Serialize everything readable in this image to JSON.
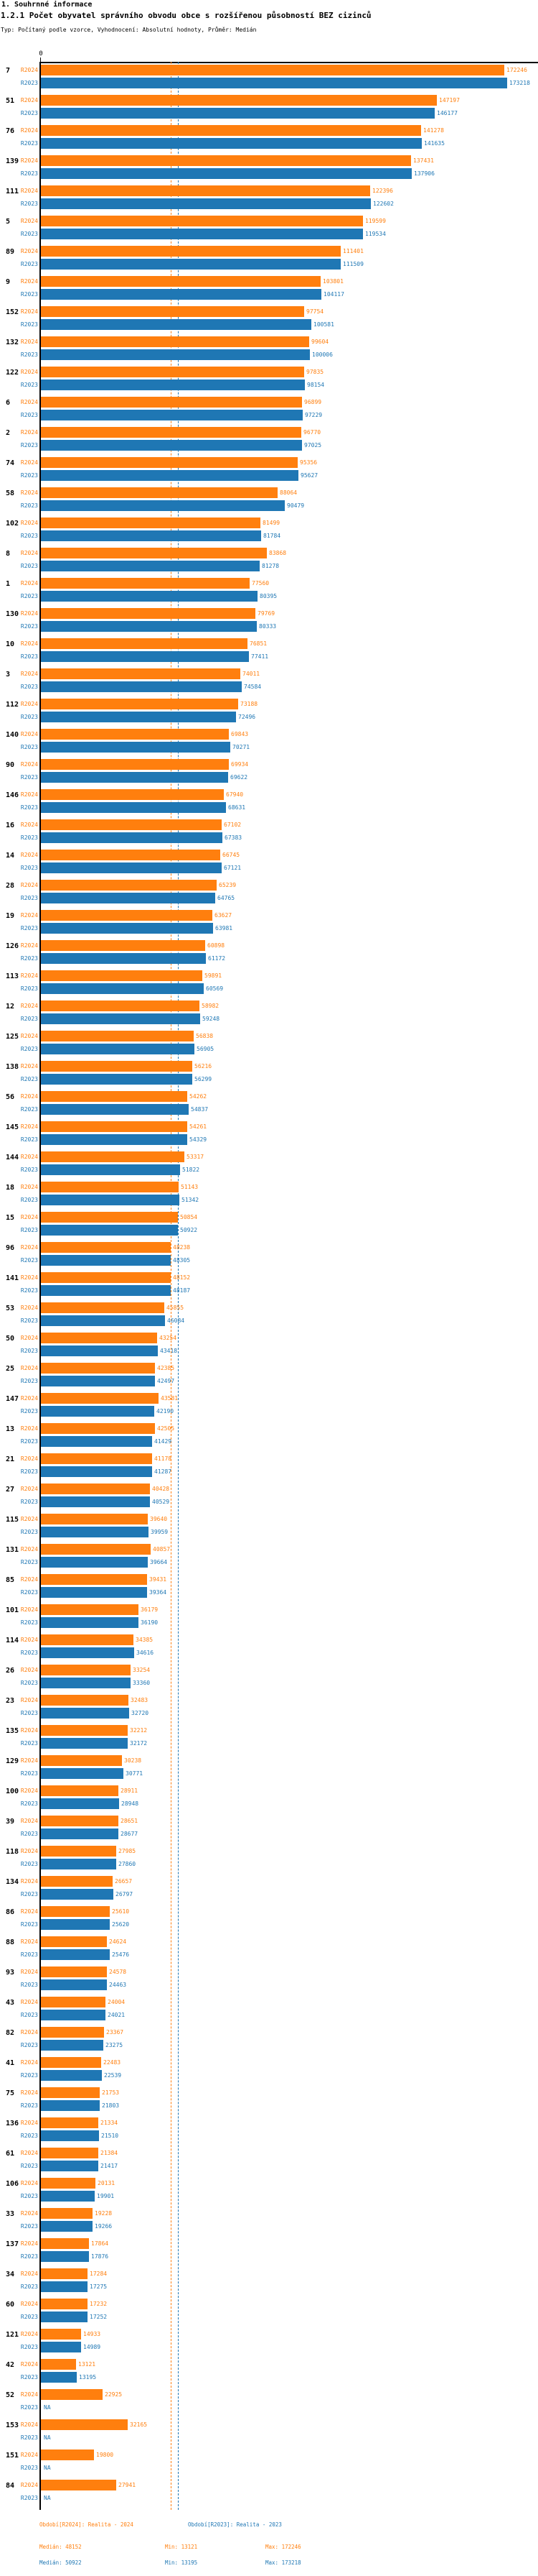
{
  "header": {
    "section_title": "1. Souhrnné informace",
    "chart_title": "1.2.1 Počet obyvatel správního obvodu obce s rozšířenou působností BEZ cizinců",
    "meta": "Typ: Počítaný podle vzorce, Vyhodnocení: Absolutní hodnoty, Průměr: Medián"
  },
  "chart_data": {
    "type": "bar",
    "orientation": "horizontal",
    "title": "1.2.1 Počet obyvatel správního obvodu obce s rozšířenou působností BEZ cizinců",
    "axis": {
      "zero_label": "0",
      "max_value": 173218,
      "na_label": "NA",
      "grid": false
    },
    "legend_position": "bottom",
    "series": [
      {
        "name": "R2024",
        "label": "Období[R2024]: Realita - 2024",
        "color": "#ff7f0e",
        "median": 48152,
        "min": 13121,
        "max": 172246
      },
      {
        "name": "R2023",
        "label": "Období[R2023]: Realita - 2023",
        "color": "#1f77b4",
        "median": 50922,
        "min": 13195,
        "max": 173218
      }
    ],
    "groups": [
      {
        "id": "7",
        "r2024": 172246,
        "r2023": 173218
      },
      {
        "id": "51",
        "r2024": 147197,
        "r2023": 146177
      },
      {
        "id": "76",
        "r2024": 141278,
        "r2023": 141635
      },
      {
        "id": "139",
        "r2024": 137431,
        "r2023": 137906
      },
      {
        "id": "111",
        "r2024": 122396,
        "r2023": 122602
      },
      {
        "id": "5",
        "r2024": 119599,
        "r2023": 119534
      },
      {
        "id": "89",
        "r2024": 111401,
        "r2023": 111509
      },
      {
        "id": "9",
        "r2024": 103801,
        "r2023": 104117
      },
      {
        "id": "152",
        "r2024": 97754,
        "r2023": 100581
      },
      {
        "id": "132",
        "r2024": 99604,
        "r2023": 100006
      },
      {
        "id": "122",
        "r2024": 97835,
        "r2023": 98154
      },
      {
        "id": "6",
        "r2024": 96899,
        "r2023": 97229
      },
      {
        "id": "2",
        "r2024": 96770,
        "r2023": 97025
      },
      {
        "id": "74",
        "r2024": 95356,
        "r2023": 95627
      },
      {
        "id": "58",
        "r2024": 88064,
        "r2023": 90479
      },
      {
        "id": "102",
        "r2024": 81499,
        "r2023": 81784
      },
      {
        "id": "8",
        "r2024": 83868,
        "r2023": 81278
      },
      {
        "id": "1",
        "r2024": 77560,
        "r2023": 80395
      },
      {
        "id": "130",
        "r2024": 79769,
        "r2023": 80333
      },
      {
        "id": "10",
        "r2024": 76851,
        "r2023": 77411
      },
      {
        "id": "3",
        "r2024": 74011,
        "r2023": 74584
      },
      {
        "id": "112",
        "r2024": 73188,
        "r2023": 72496
      },
      {
        "id": "140",
        "r2024": 69843,
        "r2023": 70271
      },
      {
        "id": "90",
        "r2024": 69934,
        "r2023": 69622
      },
      {
        "id": "146",
        "r2024": 67940,
        "r2023": 68631
      },
      {
        "id": "16",
        "r2024": 67102,
        "r2023": 67383
      },
      {
        "id": "14",
        "r2024": 66745,
        "r2023": 67121
      },
      {
        "id": "28",
        "r2024": 65239,
        "r2023": 64765
      },
      {
        "id": "19",
        "r2024": 63627,
        "r2023": 63981
      },
      {
        "id": "126",
        "r2024": 60898,
        "r2023": 61172
      },
      {
        "id": "113",
        "r2024": 59891,
        "r2023": 60569
      },
      {
        "id": "12",
        "r2024": 58982,
        "r2023": 59248
      },
      {
        "id": "125",
        "r2024": 56838,
        "r2023": 56905
      },
      {
        "id": "138",
        "r2024": 56216,
        "r2023": 56299
      },
      {
        "id": "56",
        "r2024": 54262,
        "r2023": 54837
      },
      {
        "id": "145",
        "r2024": 54261,
        "r2023": 54329
      },
      {
        "id": "144",
        "r2024": 53317,
        "r2023": 51822
      },
      {
        "id": "18",
        "r2024": 51143,
        "r2023": 51342
      },
      {
        "id": "15",
        "r2024": 50854,
        "r2023": 50922
      },
      {
        "id": "96",
        "r2024": 48238,
        "r2023": 48305
      },
      {
        "id": "141",
        "r2024": 48152,
        "r2023": 48187
      },
      {
        "id": "53",
        "r2024": 45855,
        "r2023": 46084
      },
      {
        "id": "50",
        "r2024": 43254,
        "r2023": 43418
      },
      {
        "id": "25",
        "r2024": 42385,
        "r2023": 42497
      },
      {
        "id": "147",
        "r2024": 43581,
        "r2023": 42190
      },
      {
        "id": "13",
        "r2024": 42505,
        "r2023": 41429
      },
      {
        "id": "21",
        "r2024": 41178,
        "r2023": 41287
      },
      {
        "id": "27",
        "r2024": 40428,
        "r2023": 40529
      },
      {
        "id": "115",
        "r2024": 39640,
        "r2023": 39959
      },
      {
        "id": "131",
        "r2024": 40857,
        "r2023": 39664
      },
      {
        "id": "85",
        "r2024": 39431,
        "r2023": 39364
      },
      {
        "id": "101",
        "r2024": 36179,
        "r2023": 36190
      },
      {
        "id": "114",
        "r2024": 34385,
        "r2023": 34616
      },
      {
        "id": "26",
        "r2024": 33254,
        "r2023": 33360
      },
      {
        "id": "23",
        "r2024": 32483,
        "r2023": 32720
      },
      {
        "id": "135",
        "r2024": 32212,
        "r2023": 32172
      },
      {
        "id": "129",
        "r2024": 30238,
        "r2023": 30771
      },
      {
        "id": "100",
        "r2024": 28911,
        "r2023": 28948
      },
      {
        "id": "39",
        "r2024": 28651,
        "r2023": 28677
      },
      {
        "id": "118",
        "r2024": 27985,
        "r2023": 27860
      },
      {
        "id": "134",
        "r2024": 26657,
        "r2023": 26797
      },
      {
        "id": "86",
        "r2024": 25610,
        "r2023": 25620
      },
      {
        "id": "88",
        "r2024": 24624,
        "r2023": 25476
      },
      {
        "id": "93",
        "r2024": 24578,
        "r2023": 24463
      },
      {
        "id": "43",
        "r2024": 24004,
        "r2023": 24021
      },
      {
        "id": "82",
        "r2024": 23367,
        "r2023": 23275
      },
      {
        "id": "41",
        "r2024": 22483,
        "r2023": 22539
      },
      {
        "id": "75",
        "r2024": 21753,
        "r2023": 21803
      },
      {
        "id": "136",
        "r2024": 21334,
        "r2023": 21510
      },
      {
        "id": "61",
        "r2024": 21384,
        "r2023": 21417
      },
      {
        "id": "106",
        "r2024": 20131,
        "r2023": 19901
      },
      {
        "id": "33",
        "r2024": 19228,
        "r2023": 19266
      },
      {
        "id": "137",
        "r2024": 17864,
        "r2023": 17876
      },
      {
        "id": "34",
        "r2024": 17284,
        "r2023": 17275
      },
      {
        "id": "60",
        "r2024": 17232,
        "r2023": 17252
      },
      {
        "id": "121",
        "r2024": 14933,
        "r2023": 14989
      },
      {
        "id": "42",
        "r2024": 13121,
        "r2023": 13195
      },
      {
        "id": "52",
        "r2024": 22925,
        "r2023": null
      },
      {
        "id": "153",
        "r2024": 32165,
        "r2023": null
      },
      {
        "id": "151",
        "r2024": 19800,
        "r2023": null
      },
      {
        "id": "84",
        "r2024": 27941,
        "r2023": null
      }
    ]
  },
  "footer": {
    "legend_r2024": "Období[R2024]: Realita - 2024",
    "legend_r2023": "Období[R2023]: Realita - 2023",
    "r2024": {
      "median": "Medián: 48152",
      "min": "Min: 13121",
      "max": "Max: 172246"
    },
    "r2023": {
      "median": "Medián: 50922",
      "min": "Min: 13195",
      "max": "Max: 173218"
    }
  }
}
